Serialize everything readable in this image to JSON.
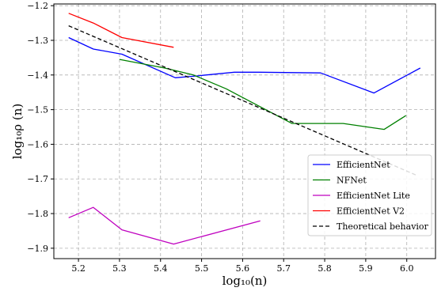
{
  "chart_data": {
    "type": "line",
    "xlabel": "log₁₀(n)",
    "ylabel": "log₁₀ρ (n)",
    "xlim": [
      5.14,
      6.07
    ],
    "ylim": [
      -1.93,
      -1.195
    ],
    "xticks": [
      5.2,
      5.3,
      5.4,
      5.5,
      5.6,
      5.7,
      5.8,
      5.9,
      6.0
    ],
    "yticks": [
      -1.9,
      -1.8,
      -1.7,
      -1.6,
      -1.5,
      -1.4,
      -1.3,
      -1.2
    ],
    "xtick_labels": [
      "5.2",
      "5.3",
      "5.4",
      "5.5",
      "5.6",
      "5.7",
      "5.8",
      "5.9",
      "6.0"
    ],
    "ytick_labels": [
      "−1.9",
      "−1.8",
      "−1.7",
      "−1.6",
      "−1.5",
      "−1.4",
      "−1.3",
      "−1.2"
    ],
    "grid": true,
    "legend_position": "lower-right",
    "series": [
      {
        "name": "EfficientNet",
        "color": "#0000ff",
        "dash": "solid",
        "x": [
          5.176,
          5.236,
          5.306,
          5.436,
          5.486,
          5.58,
          5.64,
          5.79,
          5.92,
          6.033
        ],
        "y": [
          -1.292,
          -1.325,
          -1.34,
          -1.408,
          -1.403,
          -1.392,
          -1.392,
          -1.394,
          -1.452,
          -1.38
        ]
      },
      {
        "name": "NFNet",
        "color": "#008000",
        "dash": "solid",
        "x": [
          5.3,
          5.41,
          5.48,
          5.56,
          5.64,
          5.72,
          5.845,
          5.945,
          5.998
        ],
        "y": [
          -1.355,
          -1.38,
          -1.4,
          -1.44,
          -1.49,
          -1.54,
          -1.54,
          -1.557,
          -1.517
        ]
      },
      {
        "name": "EfficientNet Lite",
        "color": "#bf00bf",
        "dash": "solid",
        "x": [
          5.176,
          5.236,
          5.306,
          5.432,
          5.643
        ],
        "y": [
          -1.812,
          -1.782,
          -1.847,
          -1.888,
          -1.821
        ]
      },
      {
        "name": "EfficientNet V2",
        "color": "#ff0000",
        "dash": "solid",
        "x": [
          5.176,
          5.236,
          5.306,
          5.432
        ],
        "y": [
          -1.222,
          -1.25,
          -1.292,
          -1.32
        ]
      },
      {
        "name": "Theoretical behavior",
        "color": "#000000",
        "dash": "dashed",
        "x": [
          5.176,
          6.025
        ],
        "y": [
          -1.258,
          -1.69
        ]
      }
    ]
  }
}
